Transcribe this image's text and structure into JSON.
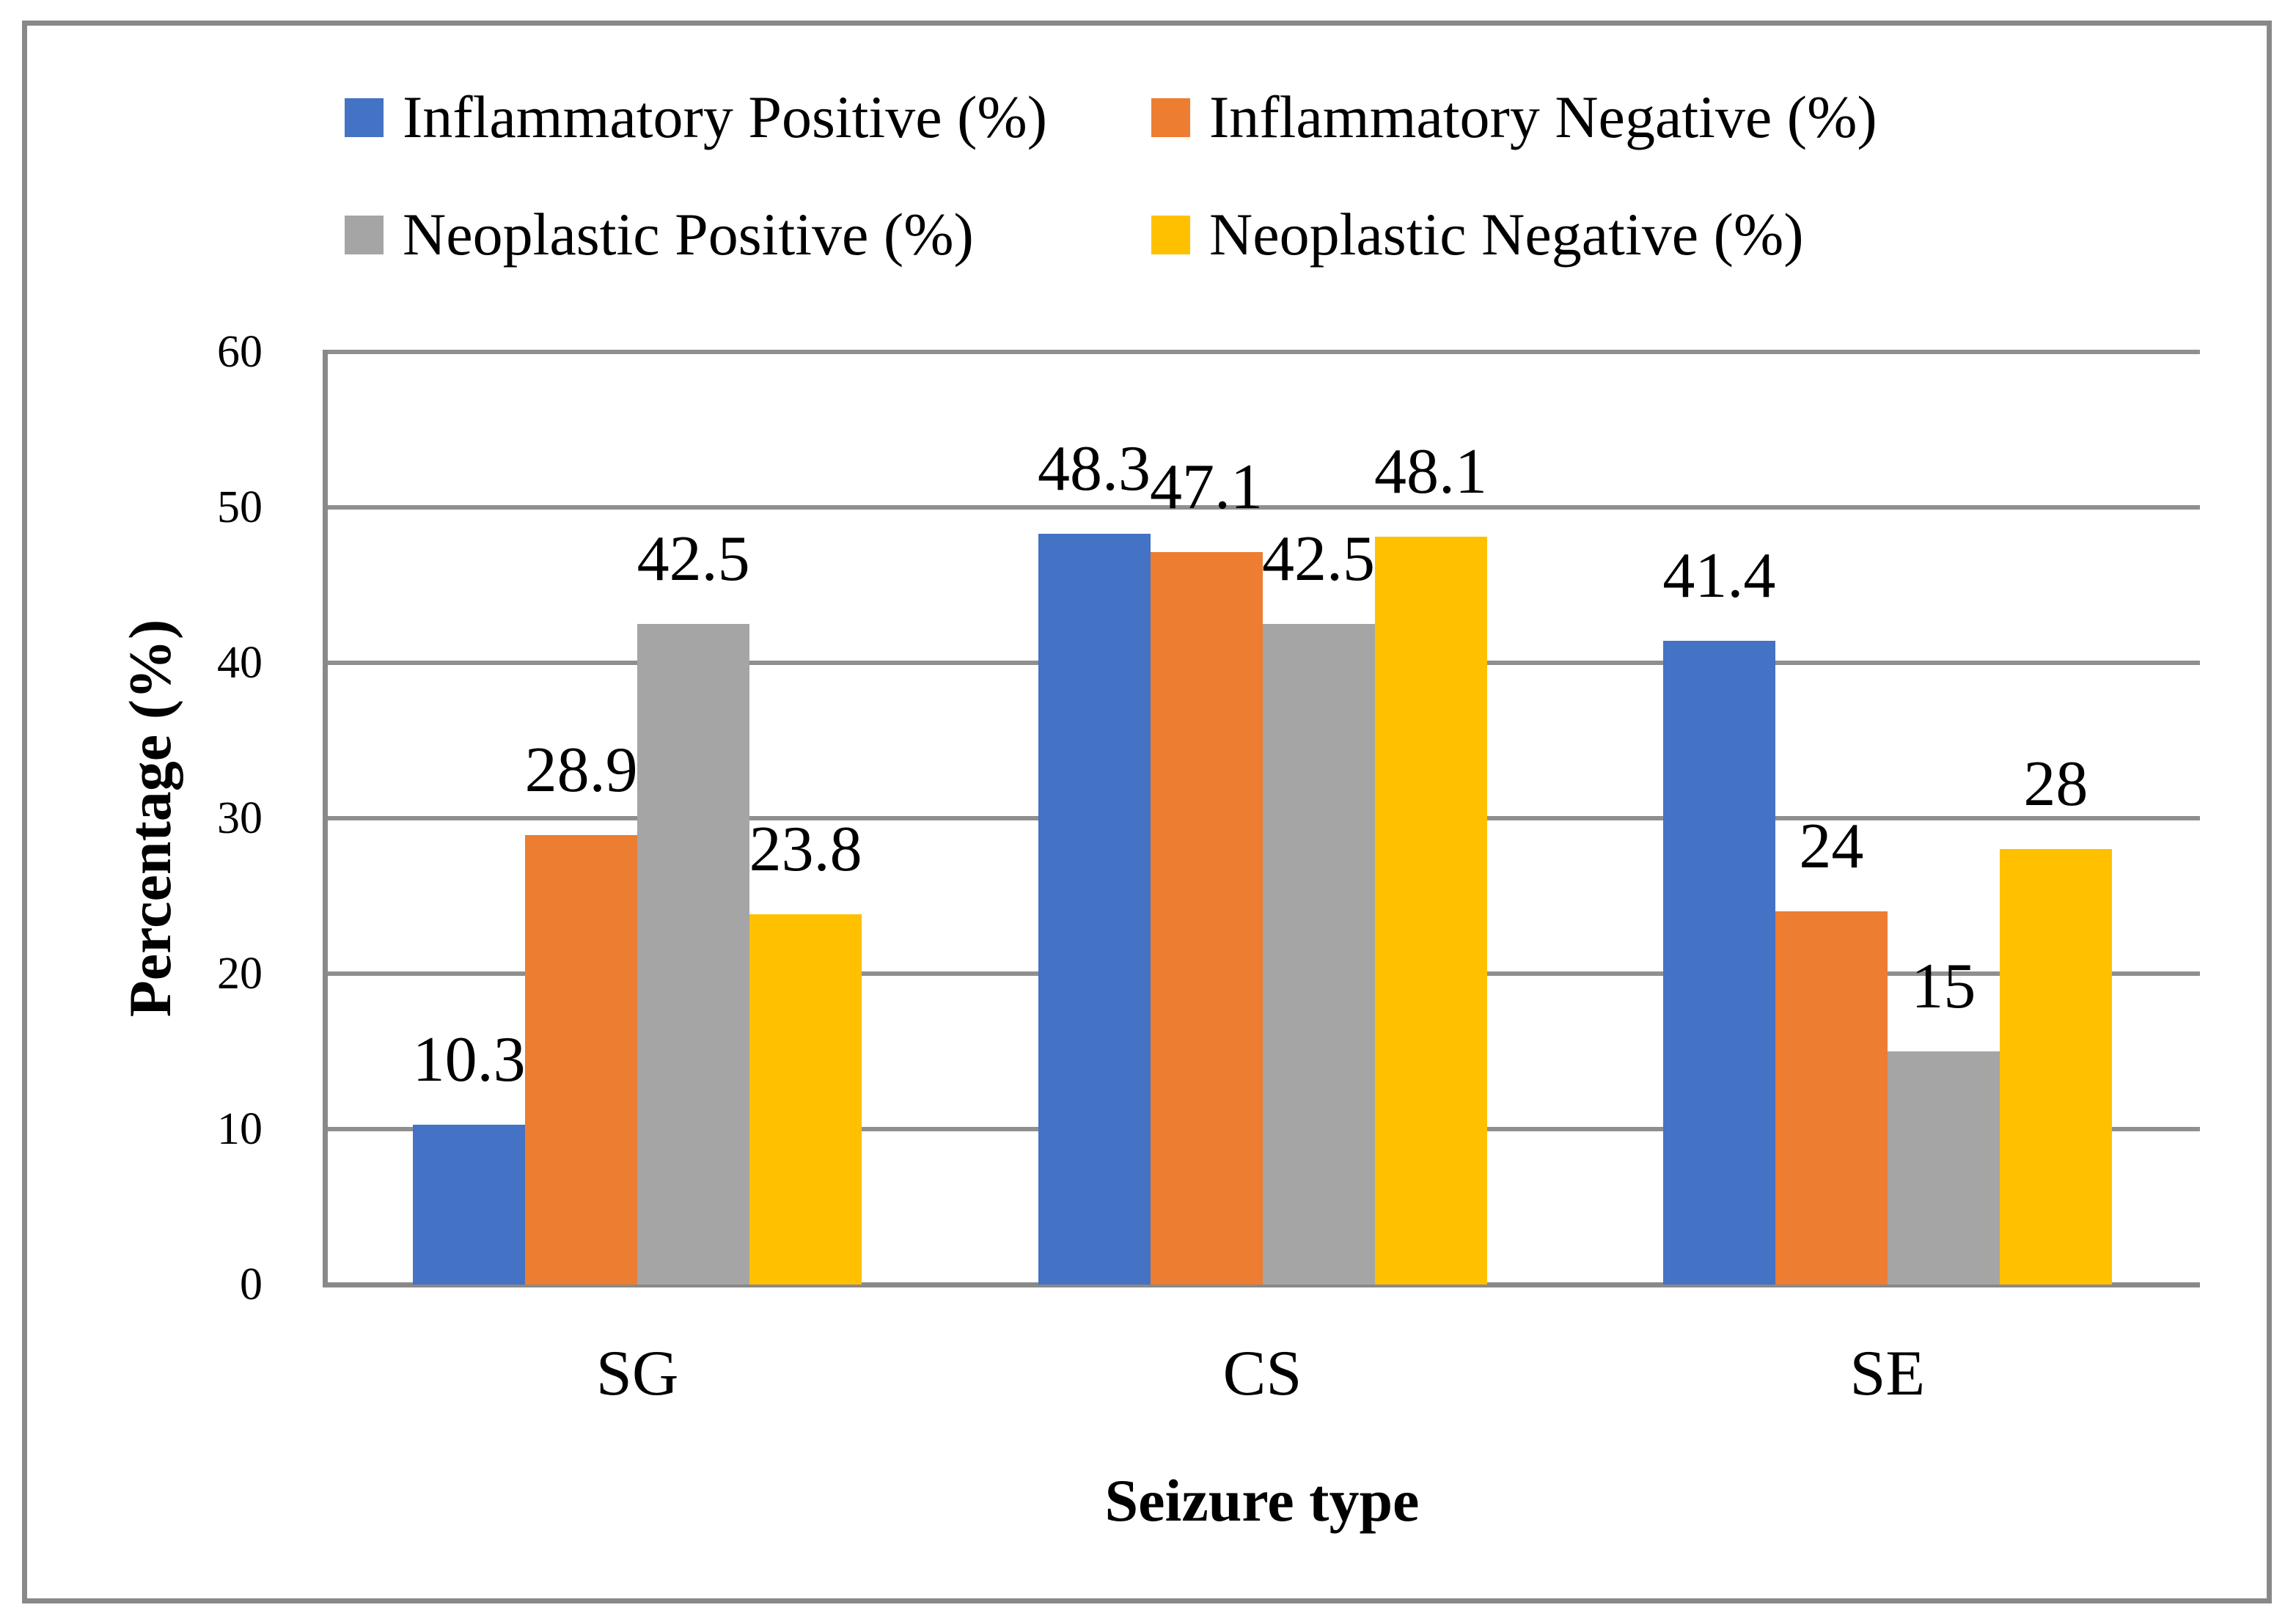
{
  "figure": {
    "background": "#ffffff",
    "border_color": "#898989",
    "gridline_color": "#8f8f8f",
    "axis_color": "#898989"
  },
  "chart_data": {
    "type": "bar",
    "title": "",
    "categories": [
      "SG",
      "CS",
      "SE"
    ],
    "series": [
      {
        "name": "Inflammatory Positive (%)",
        "color": "#4472C4",
        "values": [
          10.3,
          48.3,
          41.4
        ]
      },
      {
        "name": "Inflammatory Negative (%)",
        "color": "#ED7D31",
        "values": [
          28.9,
          47.1,
          24
        ]
      },
      {
        "name": "Neoplastic Positive (%)",
        "color": "#A5A5A5",
        "values": [
          42.5,
          42.5,
          15
        ]
      },
      {
        "name": "Neoplastic Negative (%)",
        "color": "#FFC000",
        "values": [
          23.8,
          48.1,
          28
        ]
      }
    ],
    "data_labels": [
      [
        "10.3",
        "48.3",
        "41.4"
      ],
      [
        "28.9",
        "47.1",
        "24"
      ],
      [
        "42.5",
        "42.5",
        "15"
      ],
      [
        "23.8",
        "48.1",
        "28"
      ]
    ],
    "xlabel": "Seizure type",
    "ylabel": "Percentage (%)",
    "ylim": [
      0,
      60
    ],
    "ytick_interval": 10,
    "yticks": [
      "0",
      "10",
      "20",
      "30",
      "40",
      "50",
      "60"
    ],
    "grid": "horizontal",
    "legend_position": "top",
    "legend_rows": 2
  }
}
